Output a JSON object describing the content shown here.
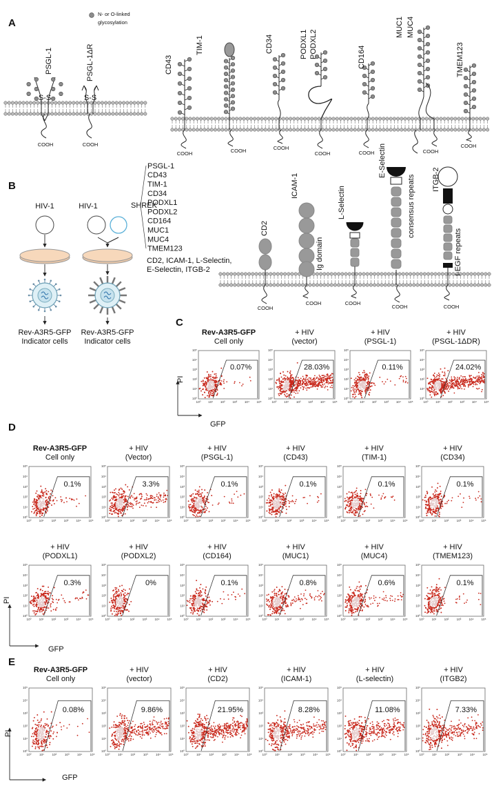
{
  "panel_a": {
    "label": "A",
    "legend": [
      "N- or O-linked",
      "glycosylation"
    ],
    "proteins": [
      [
        "PSGL-1"
      ],
      [
        "PSGL-1ΔR"
      ],
      [
        "CD43"
      ],
      [
        "TIM-1"
      ],
      [
        "CD34"
      ],
      [
        "PODXL1",
        "PODXL2"
      ],
      [
        "CD164"
      ],
      [
        "MUC1",
        "MUC4"
      ],
      [
        "TMEM123"
      ]
    ],
    "terminus": "COOH",
    "bond": "S-S"
  },
  "panel_b": {
    "label": "B",
    "virus": "HIV-1",
    "shrek": "SHREK",
    "shrek_proteins": [
      "PSGL-1",
      "CD43",
      "TIM-1",
      "CD34",
      "PODXL1",
      "PODXL2",
      "CD164",
      "MUC1",
      "MUC4",
      "TMEM123"
    ],
    "adhesion_proteins": [
      "CD2, ICAM-1, L-Selectin,",
      "E-Selectin, ITGB-2"
    ],
    "indicator_cells": [
      "Rev-A3R5-GFP",
      "Indicator cells"
    ],
    "proteins": [
      {
        "name": "CD2"
      },
      {
        "name": "ICAM-1",
        "domain": "Ig domain"
      },
      {
        "name": "L-Selectin"
      },
      {
        "name": "E-Selectin",
        "domain": "consensus repeats"
      },
      {
        "name": "ITGB-2",
        "domain": "I-EGF repeats"
      }
    ],
    "terminus": "COOH"
  },
  "flow_axis_ticks": [
    "10⁰",
    "10¹",
    "10²",
    "10³",
    "10⁴",
    "10⁵"
  ],
  "panel_c": {
    "label": "C",
    "y_axis": "PI",
    "x_axis": "GFP",
    "plots": [
      {
        "title": [
          "Rev-A3R5-GFP",
          "Cell only"
        ],
        "percent": "0.07%"
      },
      {
        "title": [
          "+ HIV",
          "(vector)"
        ],
        "percent": "28.03%"
      },
      {
        "title": [
          "+ HIV",
          "(PSGL-1)"
        ],
        "percent": "0.11%"
      },
      {
        "title": [
          "+ HIV",
          "(PSGL-1ΔDR)"
        ],
        "percent": "24.02%"
      }
    ]
  },
  "panel_d": {
    "label": "D",
    "y_axis": "PI",
    "x_axis": "GFP",
    "plots": [
      {
        "title": [
          "Rev-A3R5-GFP",
          "Cell only"
        ],
        "percent": "0.1%"
      },
      {
        "title": [
          "+ HIV",
          "(Vector)"
        ],
        "percent": "3.3%"
      },
      {
        "title": [
          "+ HIV",
          "(PSGL-1)"
        ],
        "percent": "0.1%"
      },
      {
        "title": [
          "+ HIV",
          "(CD43)"
        ],
        "percent": "0.1%"
      },
      {
        "title": [
          "+ HIV",
          "(TIM-1)"
        ],
        "percent": "0.1%"
      },
      {
        "title": [
          "+ HIV",
          "(CD34)"
        ],
        "percent": "0.1%"
      },
      {
        "title": [
          "+ HIV",
          "(PODXL1)"
        ],
        "percent": "0.3%"
      },
      {
        "title": [
          "+ HIV",
          "(PODXL2)"
        ],
        "percent": "0%"
      },
      {
        "title": [
          "+ HIV",
          "(CD164)"
        ],
        "percent": "0.1%"
      },
      {
        "title": [
          "+ HIV",
          "(MUC1)"
        ],
        "percent": "0.8%"
      },
      {
        "title": [
          "+ HIV",
          "(MUC4)"
        ],
        "percent": "0.6%"
      },
      {
        "title": [
          "+ HIV",
          "(TMEM123)"
        ],
        "percent": "0.1%"
      }
    ]
  },
  "panel_e": {
    "label": "E",
    "y_axis": "PI",
    "x_axis": "GFP",
    "plots": [
      {
        "title": [
          "Rev-A3R5-GFP",
          "Cell only"
        ],
        "percent": "0.08%"
      },
      {
        "title": [
          "+ HIV",
          "(vector)"
        ],
        "percent": "9.86%"
      },
      {
        "title": [
          "+ HIV",
          "(CD2)"
        ],
        "percent": "21.95%"
      },
      {
        "title": [
          "+ HIV",
          "(ICAM-1)"
        ],
        "percent": "8.28%"
      },
      {
        "title": [
          "+ HIV",
          "(L-selectin)"
        ],
        "percent": "11.08%"
      },
      {
        "title": [
          "+ HIV",
          "(ITGB2)"
        ],
        "percent": "7.33%"
      }
    ]
  }
}
